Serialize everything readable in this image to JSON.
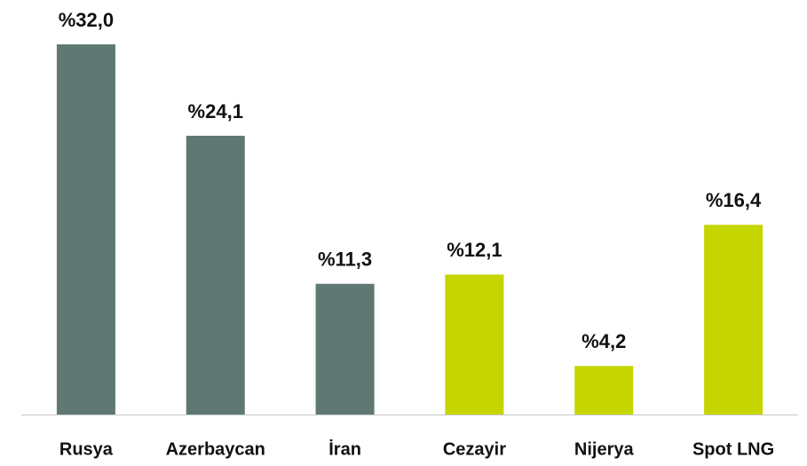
{
  "chart_data": {
    "type": "bar",
    "categories": [
      "Rusya",
      "Azerbaycan",
      "İran",
      "Cezayir",
      "Nijerya",
      "Spot LNG"
    ],
    "values": [
      32.0,
      24.1,
      11.3,
      12.1,
      4.2,
      16.4
    ],
    "value_labels": [
      "%32,0",
      "%24,1",
      "%11,3",
      "%12,1",
      "%4,2",
      "%16,4"
    ],
    "colors": [
      "#5f7873",
      "#5f7873",
      "#5f7873",
      "#c5d500",
      "#c5d500",
      "#c5d500"
    ]
  }
}
